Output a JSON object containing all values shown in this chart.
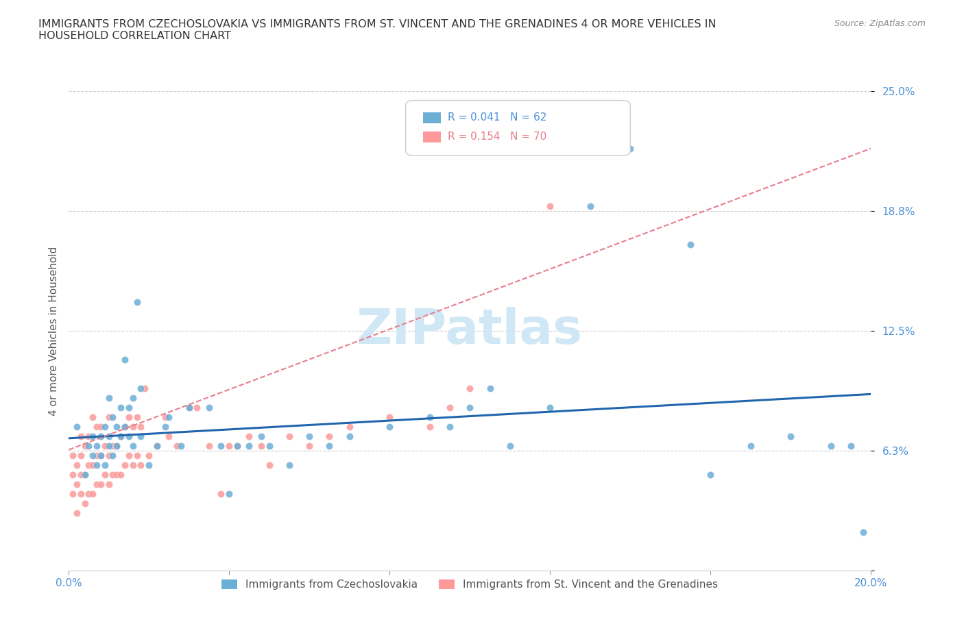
{
  "title": "IMMIGRANTS FROM CZECHOSLOVAKIA VS IMMIGRANTS FROM ST. VINCENT AND THE GRENADINES 4 OR MORE VEHICLES IN\nHOUSEHOLD CORRELATION CHART",
  "source": "Source: ZipAtlas.com",
  "xlabel": "",
  "ylabel": "4 or more Vehicles in Household",
  "xlim": [
    0.0,
    0.2
  ],
  "ylim": [
    0.0,
    0.25
  ],
  "xticks": [
    0.0,
    0.04,
    0.08,
    0.12,
    0.16,
    0.2
  ],
  "xticklabels": [
    "0.0%",
    "",
    "",
    "",
    "",
    "20.0%"
  ],
  "yticks": [
    0.0,
    0.0625,
    0.125,
    0.1875,
    0.25
  ],
  "yticklabels": [
    "",
    "6.3%",
    "12.5%",
    "18.8%",
    "25.0%"
  ],
  "legend_R1": "R = 0.041",
  "legend_N1": "N = 62",
  "legend_R2": "R = 0.154",
  "legend_N2": "N = 70",
  "color_czech": "#6baed6",
  "color_svgr": "#fb9a99",
  "trendline_czech_color": "#2166ac",
  "trendline_svgr_color": "#e87d8a",
  "gridline_color": "#cccccc",
  "watermark_color": "#d0e8f5",
  "background_color": "#ffffff",
  "scatter_czech_x": [
    0.002,
    0.004,
    0.005,
    0.006,
    0.006,
    0.007,
    0.007,
    0.008,
    0.008,
    0.009,
    0.009,
    0.01,
    0.01,
    0.01,
    0.011,
    0.011,
    0.012,
    0.012,
    0.013,
    0.013,
    0.014,
    0.014,
    0.015,
    0.015,
    0.016,
    0.016,
    0.017,
    0.018,
    0.018,
    0.02,
    0.022,
    0.024,
    0.025,
    0.028,
    0.03,
    0.035,
    0.038,
    0.04,
    0.042,
    0.045,
    0.048,
    0.05,
    0.055,
    0.06,
    0.065,
    0.07,
    0.08,
    0.09,
    0.095,
    0.1,
    0.105,
    0.11,
    0.12,
    0.13,
    0.14,
    0.155,
    0.16,
    0.17,
    0.18,
    0.19,
    0.195,
    0.198
  ],
  "scatter_czech_y": [
    0.075,
    0.05,
    0.065,
    0.06,
    0.07,
    0.055,
    0.065,
    0.06,
    0.07,
    0.055,
    0.075,
    0.065,
    0.07,
    0.09,
    0.06,
    0.08,
    0.065,
    0.075,
    0.07,
    0.085,
    0.075,
    0.11,
    0.07,
    0.085,
    0.065,
    0.09,
    0.14,
    0.095,
    0.07,
    0.055,
    0.065,
    0.075,
    0.08,
    0.065,
    0.085,
    0.085,
    0.065,
    0.04,
    0.065,
    0.065,
    0.07,
    0.065,
    0.055,
    0.07,
    0.065,
    0.07,
    0.075,
    0.08,
    0.075,
    0.085,
    0.095,
    0.065,
    0.085,
    0.19,
    0.22,
    0.17,
    0.05,
    0.065,
    0.07,
    0.065,
    0.065,
    0.02
  ],
  "scatter_svgr_x": [
    0.001,
    0.001,
    0.001,
    0.002,
    0.002,
    0.002,
    0.003,
    0.003,
    0.003,
    0.003,
    0.004,
    0.004,
    0.004,
    0.005,
    0.005,
    0.005,
    0.006,
    0.006,
    0.006,
    0.007,
    0.007,
    0.007,
    0.008,
    0.008,
    0.008,
    0.009,
    0.009,
    0.01,
    0.01,
    0.01,
    0.011,
    0.011,
    0.012,
    0.012,
    0.013,
    0.013,
    0.014,
    0.014,
    0.015,
    0.015,
    0.016,
    0.016,
    0.017,
    0.017,
    0.018,
    0.018,
    0.019,
    0.02,
    0.022,
    0.024,
    0.025,
    0.027,
    0.03,
    0.032,
    0.035,
    0.038,
    0.04,
    0.042,
    0.045,
    0.048,
    0.05,
    0.055,
    0.06,
    0.065,
    0.07,
    0.08,
    0.09,
    0.095,
    0.1,
    0.12
  ],
  "scatter_svgr_y": [
    0.04,
    0.05,
    0.06,
    0.03,
    0.045,
    0.055,
    0.04,
    0.05,
    0.06,
    0.07,
    0.035,
    0.05,
    0.065,
    0.04,
    0.055,
    0.07,
    0.04,
    0.055,
    0.08,
    0.045,
    0.06,
    0.075,
    0.045,
    0.06,
    0.075,
    0.05,
    0.065,
    0.045,
    0.06,
    0.08,
    0.05,
    0.065,
    0.05,
    0.065,
    0.05,
    0.07,
    0.055,
    0.075,
    0.06,
    0.08,
    0.055,
    0.075,
    0.06,
    0.08,
    0.055,
    0.075,
    0.095,
    0.06,
    0.065,
    0.08,
    0.07,
    0.065,
    0.085,
    0.085,
    0.065,
    0.04,
    0.065,
    0.065,
    0.07,
    0.065,
    0.055,
    0.07,
    0.065,
    0.07,
    0.075,
    0.08,
    0.075,
    0.085,
    0.095,
    0.19
  ],
  "trendline_czech_x0": 0.0,
  "trendline_czech_y0": 0.069,
  "trendline_czech_x1": 0.2,
  "trendline_czech_y1": 0.092,
  "trendline_svgr_x0": 0.0,
  "trendline_svgr_y0": 0.063,
  "trendline_svgr_x1": 0.2,
  "trendline_svgr_y1": 0.22
}
